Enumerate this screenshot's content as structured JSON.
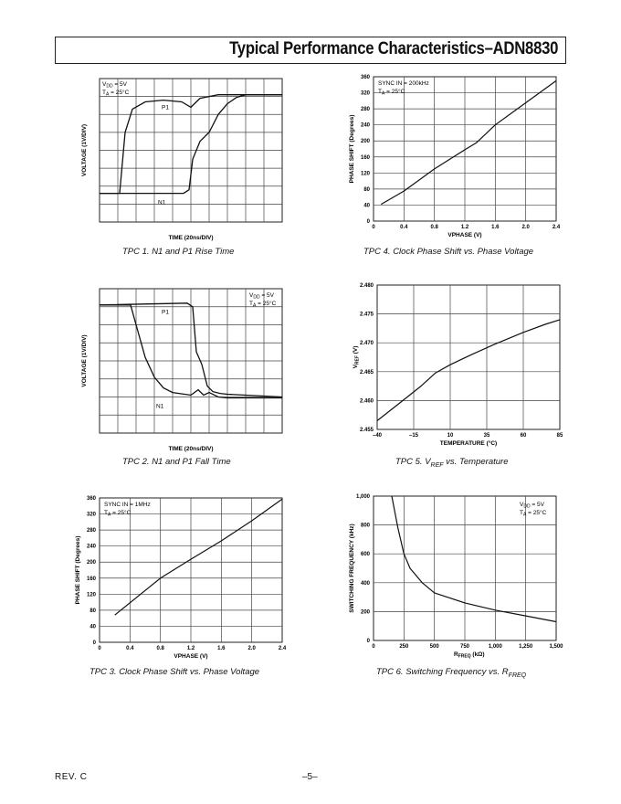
{
  "header": {
    "title": "Typical Performance Characteristics–ADN8830"
  },
  "footer": {
    "rev": "REV. C",
    "page": "–5–"
  },
  "captions": {
    "tpc1": "TPC 1.  N1 and P1 Rise Time",
    "tpc2": "TPC 2.  N1 and P1 Fall Time",
    "tpc3": "TPC 3.  Clock Phase Shift vs. Phase Voltage",
    "tpc4": "TPC 4.  Clock Phase Shift vs. Phase Voltage",
    "tpc5_a": "TPC 5.  V",
    "tpc5_sub": "REF",
    "tpc5_b": " vs. Temperature",
    "tpc6_a": "TPC 6.  Switching Frequency vs. R",
    "tpc6_sub": "FREQ"
  },
  "chart_data": [
    {
      "id": "tpc1",
      "type": "line",
      "xlabel": "TIME (20ns/DIV)",
      "ylabel": "VOLTAGE (1V/DIV)",
      "grid": true,
      "divisions": [
        10,
        8
      ],
      "annotation": [
        "VDD = 5V",
        "TA = 25°C"
      ],
      "series": [
        {
          "name": "P1",
          "x": [
            0,
            1.1,
            1.4,
            1.8,
            2.5,
            3.5,
            4.5,
            5.0,
            5.5,
            6.5,
            7.5,
            10
          ],
          "y": [
            1.6,
            1.6,
            5.0,
            6.3,
            6.7,
            6.8,
            6.7,
            6.4,
            6.9,
            7.1,
            7.1,
            7.1
          ]
        },
        {
          "name": "N1",
          "x": [
            0,
            2.0,
            3.0,
            4.6,
            4.9,
            5.1,
            5.5,
            6.0,
            6.5,
            7.0,
            7.5,
            8.0,
            10
          ],
          "y": [
            1.6,
            1.6,
            1.6,
            1.6,
            1.8,
            3.5,
            4.5,
            5.0,
            6.0,
            6.6,
            6.95,
            7.1,
            7.1
          ]
        }
      ]
    },
    {
      "id": "tpc2",
      "type": "line",
      "xlabel": "TIME (20ns/DIV)",
      "ylabel": "VOLTAGE (1V/DIV)",
      "grid": true,
      "divisions": [
        10,
        8
      ],
      "annotation": [
        "VDD = 5V",
        "TA = 25°C"
      ],
      "series": [
        {
          "name": "P1",
          "x": [
            0,
            4.8,
            5.1,
            5.3,
            5.6,
            5.9,
            6.2,
            6.6,
            7.0,
            8.0,
            10
          ],
          "y": [
            7.1,
            7.2,
            7.0,
            4.5,
            3.8,
            2.6,
            2.3,
            2.2,
            2.15,
            2.1,
            2.0
          ]
        },
        {
          "name": "N1",
          "x": [
            0,
            1.7,
            2.0,
            2.5,
            3.0,
            3.5,
            4.0,
            5.0,
            5.4,
            5.7,
            6.0,
            6.5,
            7.0,
            10
          ],
          "y": [
            7.1,
            7.1,
            6.0,
            4.2,
            3.1,
            2.5,
            2.25,
            2.1,
            2.4,
            2.1,
            2.25,
            2.0,
            1.95,
            1.95
          ]
        }
      ]
    },
    {
      "id": "tpc3",
      "type": "line",
      "xlabel": "VPHASE (V)",
      "ylabel": "PHASE SHIFT (Degrees)",
      "xlim": [
        0,
        2.4
      ],
      "ylim": [
        0,
        360
      ],
      "xticks": [
        "0",
        "0.4",
        "0.8",
        "1.2",
        "1.6",
        "2.0",
        "2.4"
      ],
      "yticks": [
        "0",
        "40",
        "80",
        "120",
        "160",
        "200",
        "240",
        "280",
        "320",
        "360"
      ],
      "annotation": [
        "SYNC IN = 1MHz",
        "TA = 25°C"
      ],
      "series": [
        {
          "x": [
            0.2,
            0.8,
            1.2,
            1.6,
            2.0,
            2.4
          ],
          "y": [
            68,
            160,
            207,
            253,
            303,
            357
          ]
        }
      ]
    },
    {
      "id": "tpc4",
      "type": "line",
      "xlabel": "VPHASE (V)",
      "ylabel": "PHASE SHIFT (Degrees)",
      "xlim": [
        0,
        2.4
      ],
      "ylim": [
        0,
        360
      ],
      "xticks": [
        "0",
        "0.4",
        "0.8",
        "1.2",
        "1.6",
        "2.0",
        "2.4"
      ],
      "yticks": [
        "0",
        "40",
        "80",
        "120",
        "160",
        "200",
        "240",
        "280",
        "320",
        "360"
      ],
      "annotation": [
        "SYNC IN = 200kHz",
        "TA = 25°C"
      ],
      "series": [
        {
          "x": [
            0.1,
            0.4,
            0.8,
            1.2,
            1.35,
            1.6,
            2.0,
            2.4
          ],
          "y": [
            42,
            75,
            130,
            178,
            195,
            240,
            295,
            350
          ]
        }
      ]
    },
    {
      "id": "tpc5",
      "type": "line",
      "xlabel": "TEMPERATURE (°C)",
      "ylabel_a": "V",
      "ylabel_sub": "REF",
      "ylabel_b": " (V)",
      "xlim": [
        -40,
        85
      ],
      "ylim": [
        2.455,
        2.48
      ],
      "xticks": [
        "–40",
        "–15",
        "10",
        "35",
        "60",
        "85"
      ],
      "yticks": [
        "2.455",
        "2.460",
        "2.465",
        "2.470",
        "2.475",
        "2.480"
      ],
      "series": [
        {
          "x": [
            -40,
            -25,
            -10,
            0,
            10,
            25,
            40,
            60,
            75,
            85
          ],
          "y": [
            2.4565,
            2.4595,
            2.4625,
            2.4648,
            2.4662,
            2.468,
            2.4697,
            2.4718,
            2.4732,
            2.474
          ]
        }
      ]
    },
    {
      "id": "tpc6",
      "type": "line",
      "xlabel_a": "R",
      "xlabel_sub": "FREQ",
      "xlabel_b": " (kΩ)",
      "ylabel": "SWITCHING FREQUENCY (kHz)",
      "xlim": [
        0,
        1500
      ],
      "ylim": [
        0,
        1000
      ],
      "xticks": [
        "0",
        "250",
        "500",
        "750",
        "1,000",
        "1,250",
        "1,500"
      ],
      "yticks": [
        "0",
        "200",
        "400",
        "600",
        "800",
        "1,000"
      ],
      "annotation": [
        "VDD = 5V",
        "TA = 25°C"
      ],
      "series": [
        {
          "x": [
            150,
            200,
            250,
            300,
            400,
            500,
            750,
            1000,
            1250,
            1500
          ],
          "y": [
            1000,
            780,
            600,
            500,
            400,
            330,
            260,
            210,
            170,
            130
          ]
        }
      ]
    }
  ]
}
